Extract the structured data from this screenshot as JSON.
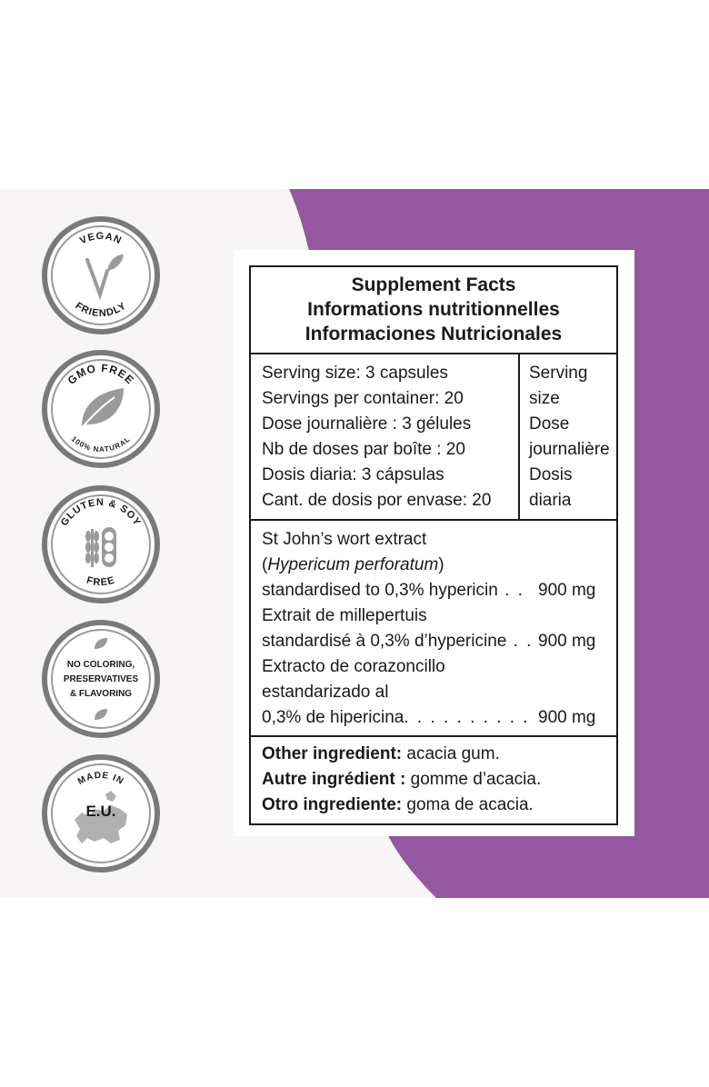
{
  "colors": {
    "purple": "#9457a0",
    "panel_bg": "#f8f5f7",
    "badge_ring": "#7a7a7a",
    "badge_gray": "#9a9a9a"
  },
  "badges": [
    {
      "top_text": "VEGAN",
      "bottom_text": "FRIENDLY",
      "icon": "v-leaf-icon"
    },
    {
      "top_text": "GMO FREE",
      "bottom_text": "100% NATURAL",
      "icon": "leaf-icon"
    },
    {
      "top_text": "GLUTEN & SOY",
      "bottom_text": "FREE",
      "icon": "wheat-soy-icon"
    },
    {
      "lines": [
        "NO COLORING,",
        "PRESERVATIVES",
        "& FLAVORING"
      ],
      "icon": "leaf-icon"
    },
    {
      "top_text": "MADE IN",
      "center_text": "E.U.",
      "icon": "europe-map-icon"
    }
  ],
  "facts": {
    "title_en": "Supplement Facts",
    "title_fr": "Informations nutritionnelles",
    "title_es": "Informaciones Nutricionales",
    "serving_lines": [
      "Serving size: 3 capsules",
      "Servings per container: 20",
      "Dose journalière : 3 gélules",
      "Nb de doses par boîte : 20",
      "Dosis diaria: 3 cápsulas",
      "Cant. de dosis por envase: 20"
    ],
    "serving_header_lines": [
      "Serving",
      "size",
      "Dose",
      "journalière",
      "Dosis",
      "diaria"
    ],
    "ingredient_en_1": "St John’s wort extract",
    "ingredient_en_2": "Hypericum perforatum",
    "ingredient_en_3": "standardised to 0,3% hypericin",
    "ingredient_en_amount": "900 mg",
    "ingredient_fr_1": "Extrait de millepertuis",
    "ingredient_fr_2": "standardisé à 0,3% d’hypericine",
    "ingredient_fr_amount": "900 mg",
    "ingredient_es_1": "Extracto de corazoncillo",
    "ingredient_es_2": "estandarizado al",
    "ingredient_es_3": "0,3% de hipericina",
    "ingredient_es_amount": "900 mg",
    "other_en_label": "Other ingredient:",
    "other_en_value": " acacia gum.",
    "other_fr_label": "Autre ingrédient :",
    "other_fr_value": " gomme d’acacia.",
    "other_es_label": "Otro ingrediente:",
    "other_es_value": " goma de acacia."
  }
}
